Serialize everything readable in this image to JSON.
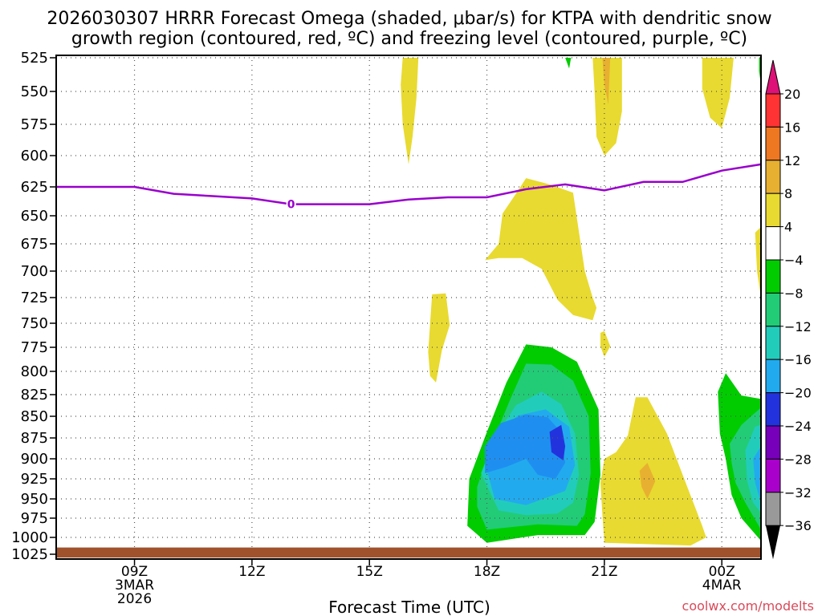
{
  "chart_data": {
    "type": "contour",
    "title_line1": "2026030307 HRRR Forecast Omega (shaded, μbar/s) for KTPA with dendritic snow",
    "title_line2": "growth region (contoured, red, ºC) and freezing level (contoured, purple, ºC)",
    "xlabel": "Forecast Time (UTC)",
    "credit": "coolwx.com/modelts",
    "x_range_hours": [
      7,
      25
    ],
    "x_ticks": [
      {
        "hour": 9,
        "lines": [
          "09Z",
          "3MAR",
          "2026"
        ]
      },
      {
        "hour": 12,
        "lines": [
          "12Z"
        ]
      },
      {
        "hour": 15,
        "lines": [
          "15Z"
        ]
      },
      {
        "hour": 18,
        "lines": [
          "18Z"
        ]
      },
      {
        "hour": 21,
        "lines": [
          "21Z"
        ]
      },
      {
        "hour": 24,
        "lines": [
          "00Z",
          "4MAR"
        ]
      }
    ],
    "y_pressure_levels_mb": [
      "525",
      "550",
      "575",
      "600",
      "625",
      "650",
      "675",
      "700",
      "725",
      "750",
      "775",
      "800",
      "825",
      "850",
      "875",
      "900",
      "925",
      "950",
      "975",
      "1000",
      "1025"
    ],
    "colorbar": {
      "labels": [
        "20",
        "16",
        "12",
        "8",
        "4",
        "−4",
        "−8",
        "−12",
        "−16",
        "−20",
        "−24",
        "−28",
        "−32",
        "−36"
      ],
      "levels": [
        20,
        16,
        12,
        8,
        4,
        -4,
        -8,
        -12,
        -16,
        -20,
        -24,
        -28,
        -32,
        -36
      ],
      "colors": [
        "#ff3333",
        "#ee7722",
        "#e8b030",
        "#e8da30",
        "#ffffff",
        "#00cc00",
        "#22cc77",
        "#22ccbb",
        "#22aaee",
        "#2233dd",
        "#7700bb",
        "#aa00cc",
        "#999999"
      ],
      "top_arrow_color": "#dd1177",
      "bottom_arrow_color": "#000000"
    },
    "freezing_level": {
      "label": "0",
      "color": "#9900cc",
      "points": [
        [
          7,
          625
        ],
        [
          9,
          625
        ],
        [
          10,
          631
        ],
        [
          11,
          633
        ],
        [
          12,
          635
        ],
        [
          13,
          640
        ],
        [
          14,
          640
        ],
        [
          15,
          640
        ],
        [
          16,
          636
        ],
        [
          17,
          634
        ],
        [
          18,
          634
        ],
        [
          19,
          627
        ],
        [
          20,
          623
        ],
        [
          21,
          628
        ],
        [
          22,
          621
        ],
        [
          23,
          621
        ],
        [
          24,
          612
        ],
        [
          25,
          607
        ]
      ]
    },
    "omega_regions": [
      {
        "level": 4,
        "points": [
          [
            15.85,
            525
          ],
          [
            16.25,
            525
          ],
          [
            16.2,
            555
          ],
          [
            16.1,
            585
          ],
          [
            16.0,
            607
          ],
          [
            15.85,
            575
          ],
          [
            15.8,
            545
          ]
        ]
      },
      {
        "level": 4,
        "points": [
          [
            16.6,
            722
          ],
          [
            16.95,
            721
          ],
          [
            17.05,
            752
          ],
          [
            16.85,
            778
          ],
          [
            16.7,
            812
          ],
          [
            16.55,
            805
          ],
          [
            16.5,
            780
          ]
        ]
      },
      {
        "level": 4,
        "points": [
          [
            18.3,
            675
          ],
          [
            18.4,
            648
          ],
          [
            18.8,
            628
          ],
          [
            19.0,
            618
          ],
          [
            19.6,
            623
          ],
          [
            20.2,
            630
          ],
          [
            20.5,
            700
          ],
          [
            20.7,
            725
          ],
          [
            20.8,
            735
          ],
          [
            20.7,
            747
          ],
          [
            20.2,
            742
          ],
          [
            19.8,
            727
          ],
          [
            19.4,
            698
          ],
          [
            18.9,
            688
          ],
          [
            18.3,
            688
          ],
          [
            17.95,
            690
          ]
        ]
      },
      {
        "level": 4,
        "points": [
          [
            20.7,
            525
          ],
          [
            21.45,
            525
          ],
          [
            21.45,
            565
          ],
          [
            21.3,
            590
          ],
          [
            21.0,
            600
          ],
          [
            20.8,
            585
          ],
          [
            20.75,
            550
          ]
        ]
      },
      {
        "level": 8,
        "points": [
          [
            20.95,
            525
          ],
          [
            21.15,
            525
          ],
          [
            21.1,
            560
          ],
          [
            21.0,
            545
          ]
        ]
      },
      {
        "level": 4,
        "points": [
          [
            20.9,
            760
          ],
          [
            21.0,
            758
          ],
          [
            21.15,
            774
          ],
          [
            21.0,
            785
          ],
          [
            20.9,
            774
          ]
        ]
      },
      {
        "level": 4,
        "points": [
          [
            21.0,
            900
          ],
          [
            21.3,
            892
          ],
          [
            21.6,
            872
          ],
          [
            21.8,
            828
          ],
          [
            22.1,
            828
          ],
          [
            22.6,
            870
          ],
          [
            23.0,
            920
          ],
          [
            23.5,
            985
          ],
          [
            23.6,
            1000
          ],
          [
            23.2,
            1012
          ],
          [
            21.0,
            1008
          ],
          [
            20.95,
            970
          ],
          [
            20.9,
            930
          ]
        ]
      },
      {
        "level": 8,
        "points": [
          [
            21.9,
            915
          ],
          [
            22.1,
            905
          ],
          [
            22.3,
            928
          ],
          [
            22.1,
            950
          ],
          [
            21.95,
            935
          ]
        ]
      },
      {
        "level": 4,
        "points": [
          [
            23.5,
            525
          ],
          [
            24.3,
            525
          ],
          [
            24.2,
            555
          ],
          [
            24.0,
            578
          ],
          [
            23.7,
            570
          ],
          [
            23.5,
            548
          ]
        ]
      },
      {
        "level": 4,
        "points": [
          [
            24.85,
            665
          ],
          [
            25,
            660
          ],
          [
            25,
            725
          ],
          [
            24.9,
            700
          ]
        ]
      },
      {
        "level": -4,
        "points": [
          [
            17.55,
            925
          ],
          [
            18.0,
            868
          ],
          [
            18.5,
            812
          ],
          [
            19.0,
            772
          ],
          [
            19.65,
            775
          ],
          [
            20.3,
            790
          ],
          [
            20.85,
            842
          ],
          [
            20.9,
            920
          ],
          [
            20.75,
            980
          ],
          [
            20.5,
            997
          ],
          [
            19.3,
            997
          ],
          [
            18.0,
            1008
          ],
          [
            17.5,
            985
          ]
        ]
      },
      {
        "level": -8,
        "points": [
          [
            17.75,
            935
          ],
          [
            18.1,
            885
          ],
          [
            18.6,
            830
          ],
          [
            19.0,
            792
          ],
          [
            19.65,
            793
          ],
          [
            20.2,
            810
          ],
          [
            20.6,
            850
          ],
          [
            20.65,
            918
          ],
          [
            20.5,
            970
          ],
          [
            20.3,
            985
          ],
          [
            19.3,
            983
          ],
          [
            18.0,
            990
          ],
          [
            17.75,
            960
          ]
        ]
      },
      {
        "level": -12,
        "points": [
          [
            17.85,
            918
          ],
          [
            18.25,
            870
          ],
          [
            18.75,
            837
          ],
          [
            19.4,
            822
          ],
          [
            19.9,
            836
          ],
          [
            20.25,
            870
          ],
          [
            20.35,
            920
          ],
          [
            20.2,
            955
          ],
          [
            19.8,
            969
          ],
          [
            19.0,
            971
          ],
          [
            18.3,
            965
          ]
        ]
      },
      {
        "level": -16,
        "points": [
          [
            17.95,
            905
          ],
          [
            18.4,
            863
          ],
          [
            18.8,
            849
          ],
          [
            19.5,
            842
          ],
          [
            20.1,
            862
          ],
          [
            20.25,
            908
          ],
          [
            20.0,
            940
          ],
          [
            19.0,
            958
          ],
          [
            18.2,
            950
          ]
        ]
      },
      {
        "level": -20,
        "points": [
          [
            17.95,
            885
          ],
          [
            18.35,
            858
          ],
          [
            19.0,
            848
          ],
          [
            19.55,
            851
          ],
          [
            19.85,
            866
          ],
          [
            20.0,
            905
          ],
          [
            19.75,
            925
          ],
          [
            19.3,
            920
          ],
          [
            19.0,
            900
          ],
          [
            18.5,
            910
          ],
          [
            17.95,
            918
          ]
        ]
      },
      {
        "level": -24,
        "points": [
          [
            19.6,
            868
          ],
          [
            19.9,
            860
          ],
          [
            20.0,
            885
          ],
          [
            19.95,
            902
          ],
          [
            19.65,
            892
          ]
        ]
      },
      {
        "level": -4,
        "points": [
          [
            23.9,
            822
          ],
          [
            24.1,
            802
          ],
          [
            24.5,
            826
          ],
          [
            25,
            830
          ],
          [
            25,
            1005
          ],
          [
            24.5,
            975
          ],
          [
            24.25,
            945
          ],
          [
            24.1,
            900
          ],
          [
            23.95,
            870
          ]
        ]
      },
      {
        "level": -8,
        "points": [
          [
            24.2,
            882
          ],
          [
            24.5,
            860
          ],
          [
            24.8,
            848
          ],
          [
            25,
            840
          ],
          [
            25,
            990
          ],
          [
            24.6,
            955
          ],
          [
            24.35,
            930
          ],
          [
            24.25,
            905
          ]
        ]
      },
      {
        "level": -12,
        "points": [
          [
            24.6,
            890
          ],
          [
            24.85,
            862
          ],
          [
            25,
            860
          ],
          [
            25,
            968
          ],
          [
            24.8,
            955
          ],
          [
            24.65,
            928
          ]
        ]
      },
      {
        "level": -16,
        "points": [
          [
            24.8,
            900
          ],
          [
            25,
            885
          ],
          [
            25,
            955
          ],
          [
            24.85,
            930
          ]
        ]
      },
      {
        "level": -4,
        "points": [
          [
            24.95,
            525
          ],
          [
            25,
            525
          ],
          [
            25,
            545
          ],
          [
            24.95,
            535
          ]
        ]
      },
      {
        "level": -4,
        "points": [
          [
            20.0,
            525
          ],
          [
            20.15,
            525
          ],
          [
            20.1,
            533
          ]
        ]
      }
    ]
  }
}
